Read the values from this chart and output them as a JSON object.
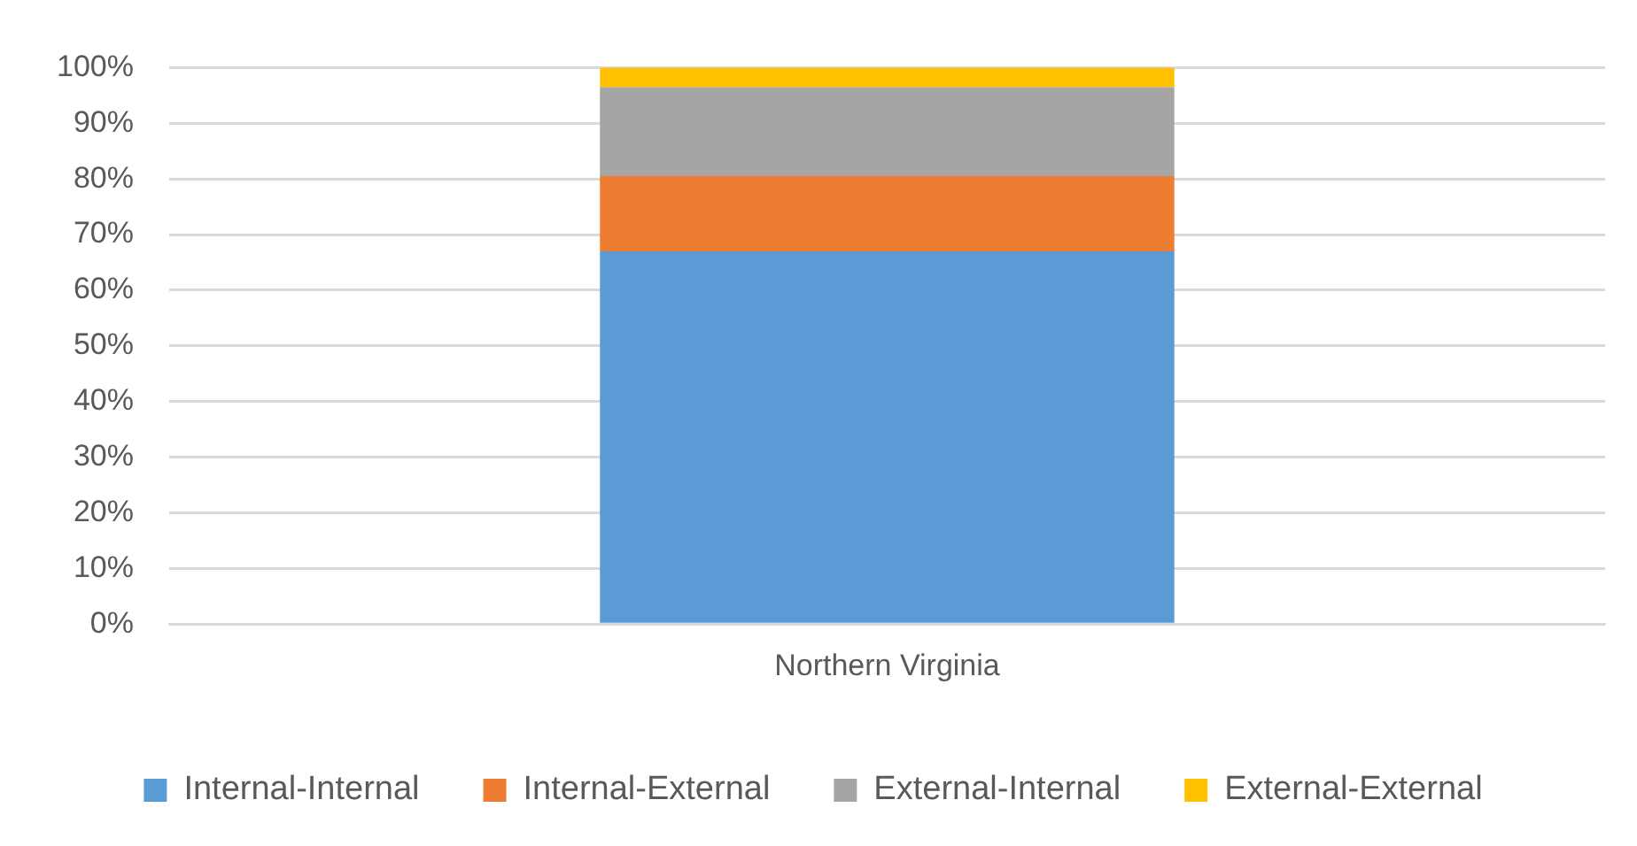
{
  "chart_data": {
    "type": "bar",
    "stacked": true,
    "categories": [
      "Northern Virginia"
    ],
    "series": [
      {
        "name": "Internal-Internal",
        "color": "#5b9bd5",
        "values": [
          67
        ]
      },
      {
        "name": "Internal-External",
        "color": "#ed7d31",
        "values": [
          13.5
        ]
      },
      {
        "name": "External-Internal",
        "color": "#a5a5a5",
        "values": [
          16
        ]
      },
      {
        "name": "External-External",
        "color": "#ffc000",
        "values": [
          3.5
        ]
      }
    ],
    "ylim": [
      0,
      100
    ],
    "yticks": [
      {
        "value": 0,
        "label": "0%"
      },
      {
        "value": 10,
        "label": "10%"
      },
      {
        "value": 20,
        "label": "20%"
      },
      {
        "value": 30,
        "label": "30%"
      },
      {
        "value": 40,
        "label": "40%"
      },
      {
        "value": 50,
        "label": "50%"
      },
      {
        "value": 60,
        "label": "60%"
      },
      {
        "value": 70,
        "label": "70%"
      },
      {
        "value": 80,
        "label": "80%"
      },
      {
        "value": 90,
        "label": "90%"
      },
      {
        "value": 100,
        "label": "100%"
      }
    ],
    "grid": "y",
    "legend": "bottom"
  }
}
